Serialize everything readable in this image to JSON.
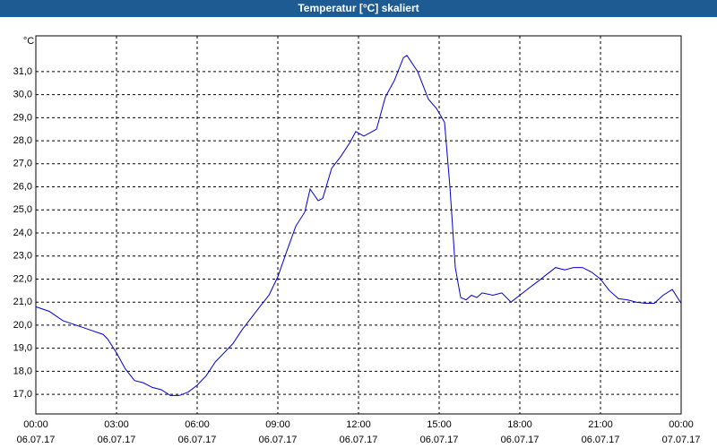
{
  "chart_data": {
    "type": "line",
    "title": "Temperatur [°C] skaliert",
    "ylabel": "°C",
    "x": [
      0,
      0.5,
      1,
      1.5,
      2,
      2.5,
      2.67,
      3,
      3.33,
      3.67,
      4,
      4.33,
      4.67,
      5,
      5.33,
      5.67,
      6,
      6.33,
      6.67,
      7,
      7.33,
      7.67,
      8,
      8.33,
      8.67,
      9,
      9.33,
      9.67,
      10,
      10.2,
      10.5,
      10.67,
      11,
      11.33,
      11.67,
      11.9,
      12.2,
      12.67,
      13,
      13.33,
      13.67,
      13.8,
      14.2,
      14.6,
      14.9,
      15.2,
      15.4,
      15.6,
      15.8,
      16,
      16.2,
      16.4,
      16.6,
      17,
      17.33,
      17.67,
      18,
      18.33,
      18.67,
      19,
      19.33,
      19.67,
      20,
      20.33,
      20.67,
      21,
      21.33,
      21.67,
      22,
      22.33,
      22.67,
      23,
      23.33,
      23.67,
      24
    ],
    "series": [
      {
        "name": "Temperatur",
        "color": "#0000cc",
        "values": [
          20.8,
          20.6,
          20.2,
          20.0,
          19.8,
          19.6,
          19.4,
          18.8,
          18.1,
          17.6,
          17.5,
          17.3,
          17.2,
          16.95,
          16.95,
          17.1,
          17.4,
          17.8,
          18.4,
          18.8,
          19.2,
          19.8,
          20.3,
          20.8,
          21.3,
          22.1,
          23.2,
          24.3,
          24.9,
          25.9,
          25.4,
          25.5,
          26.8,
          27.3,
          27.9,
          28.4,
          28.2,
          28.5,
          29.9,
          30.6,
          31.6,
          31.7,
          31.0,
          29.8,
          29.4,
          28.8,
          26.0,
          22.5,
          21.2,
          21.1,
          21.3,
          21.2,
          21.4,
          21.3,
          21.4,
          21.0,
          21.3,
          21.6,
          21.9,
          22.2,
          22.5,
          22.4,
          22.5,
          22.5,
          22.3,
          22.0,
          21.5,
          21.15,
          21.1,
          21.0,
          20.95,
          20.95,
          21.3,
          21.55,
          20.95
        ]
      }
    ],
    "xlim": [
      0,
      24
    ],
    "xticks": [
      {
        "value": 0,
        "label": "00:00\n06.07.17"
      },
      {
        "value": 3,
        "label": "03:00\n06.07.17"
      },
      {
        "value": 6,
        "label": "06:00\n06.07.17"
      },
      {
        "value": 9,
        "label": "09:00\n06.07.17"
      },
      {
        "value": 12,
        "label": "12:00\n06.07.17"
      },
      {
        "value": 15,
        "label": "15:00\n06.07.17"
      },
      {
        "value": 18,
        "label": "18:00\n06.07.17"
      },
      {
        "value": 21,
        "label": "21:00\n06.07.17"
      },
      {
        "value": 24,
        "label": "00:00\n07.07.17"
      }
    ],
    "ylim": [
      16.15,
      32.55
    ],
    "yticks": [
      {
        "value": 17,
        "label": "17,0"
      },
      {
        "value": 18,
        "label": "18,0"
      },
      {
        "value": 19,
        "label": "19,0"
      },
      {
        "value": 20,
        "label": "20,0"
      },
      {
        "value": 21,
        "label": "21,0"
      },
      {
        "value": 22,
        "label": "22,0"
      },
      {
        "value": 23,
        "label": "23,0"
      },
      {
        "value": 24,
        "label": "24,0"
      },
      {
        "value": 25,
        "label": "25,0"
      },
      {
        "value": 26,
        "label": "26,0"
      },
      {
        "value": 27,
        "label": "27,0"
      },
      {
        "value": 28,
        "label": "28,0"
      },
      {
        "value": 29,
        "label": "29,0"
      },
      {
        "value": 30,
        "label": "30,0"
      },
      {
        "value": 31,
        "label": "31,0"
      }
    ],
    "grid": true
  }
}
